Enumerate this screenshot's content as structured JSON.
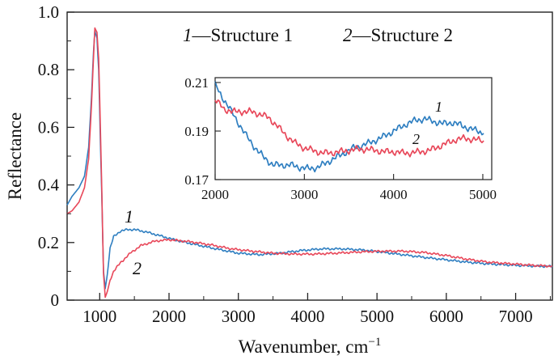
{
  "chart_data": {
    "type": "line",
    "xlabel": "Wavenumber, cm",
    "xlabel_sup": "−1",
    "ylabel": "Reflectance",
    "xlim": [
      530,
      7530
    ],
    "ylim": [
      0,
      1.0
    ],
    "xticks": [
      1000,
      2000,
      3000,
      4000,
      5000,
      6000,
      7000
    ],
    "xtick_labels": [
      "1000",
      "2000",
      "3000",
      "4000",
      "5000",
      "6000",
      "7000"
    ],
    "yticks": [
      0,
      0.2,
      0.4,
      0.6,
      0.8,
      1.0
    ],
    "ytick_labels": [
      "0",
      "0.2",
      "0.4",
      "0.6",
      "0.8",
      "1.0"
    ],
    "grid": false,
    "legend": {
      "position": "top-right",
      "entries": [
        {
          "num": "1",
          "sep": "—",
          "text": "Structure 1"
        },
        {
          "num": "2",
          "sep": "—",
          "text": "Structure 2"
        }
      ]
    },
    "curve_labels": [
      "1",
      "2"
    ],
    "series": [
      {
        "name": "Structure 1",
        "color": "#2f7fc1",
        "points": [
          [
            530,
            0.33
          ],
          [
            600,
            0.36
          ],
          [
            700,
            0.39
          ],
          [
            780,
            0.43
          ],
          [
            840,
            0.53
          ],
          [
            880,
            0.7
          ],
          [
            910,
            0.86
          ],
          [
            930,
            0.935
          ],
          [
            960,
            0.91
          ],
          [
            985,
            0.8
          ],
          [
            1010,
            0.55
          ],
          [
            1030,
            0.36
          ],
          [
            1055,
            0.1
          ],
          [
            1080,
            0.04
          ],
          [
            1110,
            0.09
          ],
          [
            1150,
            0.18
          ],
          [
            1200,
            0.22
          ],
          [
            1300,
            0.24
          ],
          [
            1400,
            0.245
          ],
          [
            1500,
            0.245
          ],
          [
            1650,
            0.238
          ],
          [
            1850,
            0.225
          ],
          [
            2100,
            0.208
          ],
          [
            2400,
            0.192
          ],
          [
            2700,
            0.177
          ],
          [
            3000,
            0.163
          ],
          [
            3300,
            0.158
          ],
          [
            3600,
            0.163
          ],
          [
            3900,
            0.172
          ],
          [
            4200,
            0.178
          ],
          [
            4500,
            0.178
          ],
          [
            4800,
            0.174
          ],
          [
            5100,
            0.166
          ],
          [
            5400,
            0.157
          ],
          [
            5700,
            0.148
          ],
          [
            6000,
            0.14
          ],
          [
            6300,
            0.132
          ],
          [
            6600,
            0.126
          ],
          [
            7000,
            0.121
          ],
          [
            7300,
            0.118
          ],
          [
            7530,
            0.117
          ]
        ]
      },
      {
        "name": "Structure 2",
        "color": "#e8485a",
        "points": [
          [
            530,
            0.3
          ],
          [
            600,
            0.31
          ],
          [
            700,
            0.34
          ],
          [
            780,
            0.39
          ],
          [
            840,
            0.49
          ],
          [
            880,
            0.67
          ],
          [
            910,
            0.84
          ],
          [
            930,
            0.945
          ],
          [
            960,
            0.93
          ],
          [
            985,
            0.84
          ],
          [
            1010,
            0.6
          ],
          [
            1030,
            0.38
          ],
          [
            1055,
            0.09
          ],
          [
            1080,
            0.01
          ],
          [
            1110,
            0.03
          ],
          [
            1150,
            0.07
          ],
          [
            1200,
            0.1
          ],
          [
            1300,
            0.13
          ],
          [
            1450,
            0.165
          ],
          [
            1600,
            0.19
          ],
          [
            1800,
            0.205
          ],
          [
            2000,
            0.21
          ],
          [
            2300,
            0.203
          ],
          [
            2600,
            0.192
          ],
          [
            2900,
            0.178
          ],
          [
            3200,
            0.17
          ],
          [
            3500,
            0.163
          ],
          [
            3800,
            0.16
          ],
          [
            4100,
            0.16
          ],
          [
            4400,
            0.163
          ],
          [
            4800,
            0.168
          ],
          [
            5100,
            0.17
          ],
          [
            5400,
            0.17
          ],
          [
            5700,
            0.165
          ],
          [
            6000,
            0.155
          ],
          [
            6300,
            0.142
          ],
          [
            6600,
            0.132
          ],
          [
            7000,
            0.125
          ],
          [
            7300,
            0.12
          ],
          [
            7530,
            0.118
          ]
        ]
      }
    ],
    "inset": {
      "xlim": [
        2000,
        5100
      ],
      "ylim": [
        0.17,
        0.212
      ],
      "xticks": [
        2000,
        3000,
        4000,
        5000
      ],
      "xtick_labels": [
        "2000",
        "3000",
        "4000",
        "5000"
      ],
      "yticks": [
        0.17,
        0.19,
        0.21
      ],
      "ytick_labels": [
        "0.17",
        "0.19",
        "0.21"
      ],
      "curve_labels": [
        "1",
        "2"
      ],
      "series": [
        {
          "name": "Structure 1",
          "color": "#2f7fc1",
          "points": [
            [
              2000,
              0.209
            ],
            [
              2080,
              0.204
            ],
            [
              2150,
              0.2
            ],
            [
              2250,
              0.194
            ],
            [
              2350,
              0.188
            ],
            [
              2450,
              0.183
            ],
            [
              2550,
              0.179
            ],
            [
              2650,
              0.176
            ],
            [
              2750,
              0.176
            ],
            [
              2850,
              0.176
            ],
            [
              2950,
              0.175
            ],
            [
              3050,
              0.1745
            ],
            [
              3150,
              0.175
            ],
            [
              3250,
              0.177
            ],
            [
              3350,
              0.179
            ],
            [
              3450,
              0.181
            ],
            [
              3550,
              0.183
            ],
            [
              3650,
              0.184
            ],
            [
              3750,
              0.1855
            ],
            [
              3850,
              0.187
            ],
            [
              3950,
              0.189
            ],
            [
              4050,
              0.191
            ],
            [
              4150,
              0.193
            ],
            [
              4250,
              0.1945
            ],
            [
              4350,
              0.195
            ],
            [
              4450,
              0.194
            ],
            [
              4550,
              0.193
            ],
            [
              4650,
              0.1935
            ],
            [
              4750,
              0.1925
            ],
            [
              4850,
              0.191
            ],
            [
              4950,
              0.19
            ],
            [
              5010,
              0.189
            ]
          ]
        },
        {
          "name": "Structure 2",
          "color": "#e8485a",
          "points": [
            [
              2000,
              0.203
            ],
            [
              2100,
              0.199
            ],
            [
              2200,
              0.198
            ],
            [
              2300,
              0.198
            ],
            [
              2400,
              0.198
            ],
            [
              2500,
              0.197
            ],
            [
              2600,
              0.1955
            ],
            [
              2700,
              0.192
            ],
            [
              2800,
              0.188
            ],
            [
              2900,
              0.185
            ],
            [
              3000,
              0.183
            ],
            [
              3100,
              0.182
            ],
            [
              3200,
              0.181
            ],
            [
              3300,
              0.181
            ],
            [
              3400,
              0.1815
            ],
            [
              3500,
              0.182
            ],
            [
              3600,
              0.1825
            ],
            [
              3700,
              0.1825
            ],
            [
              3800,
              0.182
            ],
            [
              3900,
              0.1815
            ],
            [
              4000,
              0.1815
            ],
            [
              4100,
              0.181
            ],
            [
              4200,
              0.181
            ],
            [
              4300,
              0.1815
            ],
            [
              4400,
              0.182
            ],
            [
              4500,
              0.1835
            ],
            [
              4600,
              0.185
            ],
            [
              4700,
              0.1865
            ],
            [
              4800,
              0.187
            ],
            [
              4900,
              0.1865
            ],
            [
              5010,
              0.186
            ]
          ]
        }
      ]
    }
  }
}
